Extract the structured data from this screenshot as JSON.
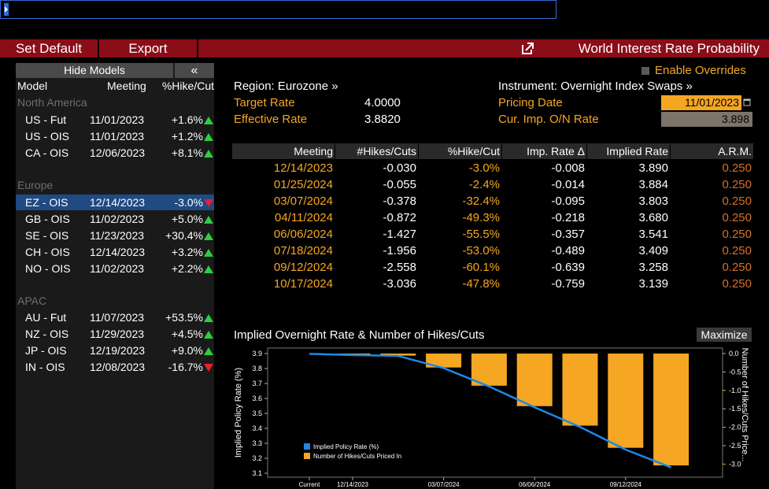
{
  "toolbar": {
    "set_default": "Set Default",
    "export": "Export",
    "title": "World Interest Rate Probability"
  },
  "left_panel": {
    "hide_models": "Hide Models",
    "collapse": "«",
    "col_model": "Model",
    "col_meeting": "Meeting",
    "col_hike": "%Hike/Cut",
    "groups": [
      {
        "name": "North America",
        "rows": [
          {
            "model": "US - Fut",
            "meeting": "11/01/2023",
            "hike": "+1.6%",
            "dir": "up"
          },
          {
            "model": "US - OIS",
            "meeting": "11/01/2023",
            "hike": "+1.2%",
            "dir": "up"
          },
          {
            "model": "CA - OIS",
            "meeting": "12/06/2023",
            "hike": "+8.1%",
            "dir": "up"
          }
        ]
      },
      {
        "name": "Europe",
        "rows": [
          {
            "model": "EZ - OIS",
            "meeting": "12/14/2023",
            "hike": "-3.0%",
            "dir": "down",
            "selected": true
          },
          {
            "model": "GB - OIS",
            "meeting": "11/02/2023",
            "hike": "+5.0%",
            "dir": "up"
          },
          {
            "model": "SE - OIS",
            "meeting": "11/23/2023",
            "hike": "+30.4%",
            "dir": "up"
          },
          {
            "model": "CH - OIS",
            "meeting": "12/14/2023",
            "hike": "+3.2%",
            "dir": "up"
          },
          {
            "model": "NO - OIS",
            "meeting": "11/02/2023",
            "hike": "+2.2%",
            "dir": "up"
          }
        ]
      },
      {
        "name": "APAC",
        "rows": [
          {
            "model": "AU - Fut",
            "meeting": "11/07/2023",
            "hike": "+53.5%",
            "dir": "up"
          },
          {
            "model": "NZ - OIS",
            "meeting": "11/29/2023",
            "hike": "+4.5%",
            "dir": "up"
          },
          {
            "model": "JP - OIS",
            "meeting": "12/19/2023",
            "hike": "+9.0%",
            "dir": "up"
          },
          {
            "model": "IN - OIS",
            "meeting": "12/08/2023",
            "hike": "-16.7%",
            "dir": "down"
          }
        ]
      }
    ]
  },
  "info": {
    "enable_overrides": "Enable Overrides",
    "region": "Region: Eurozone »",
    "instrument": "Instrument: Overnight Index Swaps »",
    "target_rate_label": "Target Rate",
    "target_rate": "4.0000",
    "effective_rate_label": "Effective Rate",
    "effective_rate": "3.8820",
    "pricing_date_label": "Pricing Date",
    "pricing_date": "11/01/2023",
    "onrate_label": "Cur. Imp. O/N Rate",
    "onrate": "3.898"
  },
  "table": {
    "headers": [
      "Meeting",
      "#Hikes/Cuts",
      "%Hike/Cut",
      "Imp. Rate Δ",
      "Implied Rate",
      "A.R.M."
    ],
    "rows": [
      [
        "12/14/2023",
        "-0.030",
        "-3.0%",
        "-0.008",
        "3.890",
        "0.250"
      ],
      [
        "01/25/2024",
        "-0.055",
        "-2.4%",
        "-0.014",
        "3.884",
        "0.250"
      ],
      [
        "03/07/2024",
        "-0.378",
        "-32.4%",
        "-0.095",
        "3.803",
        "0.250"
      ],
      [
        "04/11/2024",
        "-0.872",
        "-49.3%",
        "-0.218",
        "3.680",
        "0.250"
      ],
      [
        "06/06/2024",
        "-1.427",
        "-55.5%",
        "-0.357",
        "3.541",
        "0.250"
      ],
      [
        "07/18/2024",
        "-1.956",
        "-53.0%",
        "-0.489",
        "3.409",
        "0.250"
      ],
      [
        "09/12/2024",
        "-2.558",
        "-60.1%",
        "-0.639",
        "3.258",
        "0.250"
      ],
      [
        "10/17/2024",
        "-3.036",
        "-47.8%",
        "-0.759",
        "3.139",
        "0.250"
      ]
    ]
  },
  "chart": {
    "title": "Implied Overnight Rate & Number of Hikes/Cuts",
    "maximize": "Maximize"
  },
  "chart_data": {
    "type": "bar",
    "title": "Implied Overnight Rate & Number of Hikes/Cuts",
    "x_tick_labels": [
      "Current",
      "12/14/2023",
      "03/07/2024",
      "06/06/2024",
      "09/12/2024"
    ],
    "ylabel_left": "Implied Policy Rate (%)",
    "ylabel_right": "Number of Hikes/Cuts Price...",
    "yleft_ticks": [
      "3.9",
      "3.8",
      "3.7",
      "3.6",
      "3.5",
      "3.4",
      "3.3",
      "3.2",
      "3.1"
    ],
    "yright_ticks": [
      "0.0",
      "-0.5",
      "-1.0",
      "-1.5",
      "-2.0",
      "-2.5",
      "-3.0"
    ],
    "yleft_range": [
      3.1,
      3.9
    ],
    "yright_range": [
      -3.2,
      0.0
    ],
    "series": [
      {
        "name": "Implied Policy Rate (%)",
        "kind": "line",
        "color": "#1e88e5",
        "x": [
          "Current",
          "12/14/2023",
          "01/25/2024",
          "03/07/2024",
          "04/11/2024",
          "06/06/2024",
          "07/18/2024",
          "09/12/2024",
          "10/17/2024"
        ],
        "values": [
          3.898,
          3.89,
          3.884,
          3.803,
          3.68,
          3.541,
          3.409,
          3.258,
          3.139
        ]
      },
      {
        "name": "Number of Hikes/Cuts Priced In",
        "kind": "bar",
        "color": "#f5a623",
        "x": [
          "12/14/2023",
          "01/25/2024",
          "03/07/2024",
          "04/11/2024",
          "06/06/2024",
          "07/18/2024",
          "09/12/2024",
          "10/17/2024"
        ],
        "values": [
          -0.03,
          -0.055,
          -0.378,
          -0.872,
          -1.427,
          -1.956,
          -2.558,
          -3.036
        ]
      }
    ]
  }
}
